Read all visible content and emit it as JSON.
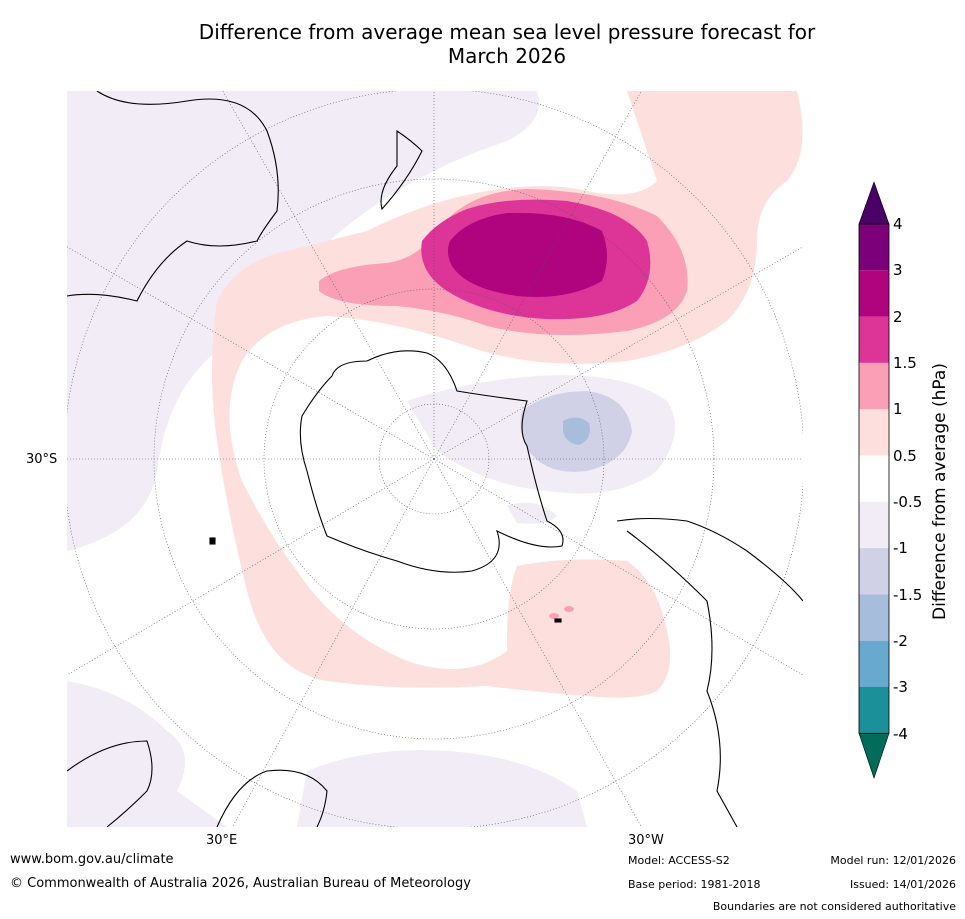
{
  "title_line1": "Difference from average mean sea level pressure forecast for",
  "title_line2": "March 2026",
  "map_labels": {
    "lat_30s": "30°S",
    "lon_30e": "30°E",
    "lon_30w": "30°W"
  },
  "legend": {
    "label": "Difference from average (hPa)",
    "ticks": [
      "4",
      "3",
      "2",
      "1.5",
      "1",
      "0.5",
      "-0.5",
      "-1",
      "-1.5",
      "-2",
      "-3",
      "-4"
    ],
    "colors": {
      "above_4": "#4a0066",
      "c3_4": "#7b0079",
      "c2_3": "#b0037e",
      "c15_2": "#dd3497",
      "c1_15": "#fa9fb5",
      "c05_1": "#fde0dd",
      "neutral": "#ffffff",
      "cm1_m05": "#f1ecf5",
      "cm15_m1": "#d0d1e6",
      "cm2_m15": "#a6bddb",
      "cm3_m2": "#67a9cf",
      "cm4_m3": "#1c9099",
      "below_m4": "#016c59"
    }
  },
  "footer": {
    "website": "www.bom.gov.au/climate",
    "copyright": "© Commonwealth of Australia 2026, Australian Bureau of Meteorology",
    "model": "Model: ACCESS-S2",
    "base_period": "Base period: 1981-2018",
    "model_run": "Model run: 12/01/2026",
    "issued": "Issued: 14/01/2026",
    "disclaimer": "Boundaries are not considered authoritative"
  }
}
